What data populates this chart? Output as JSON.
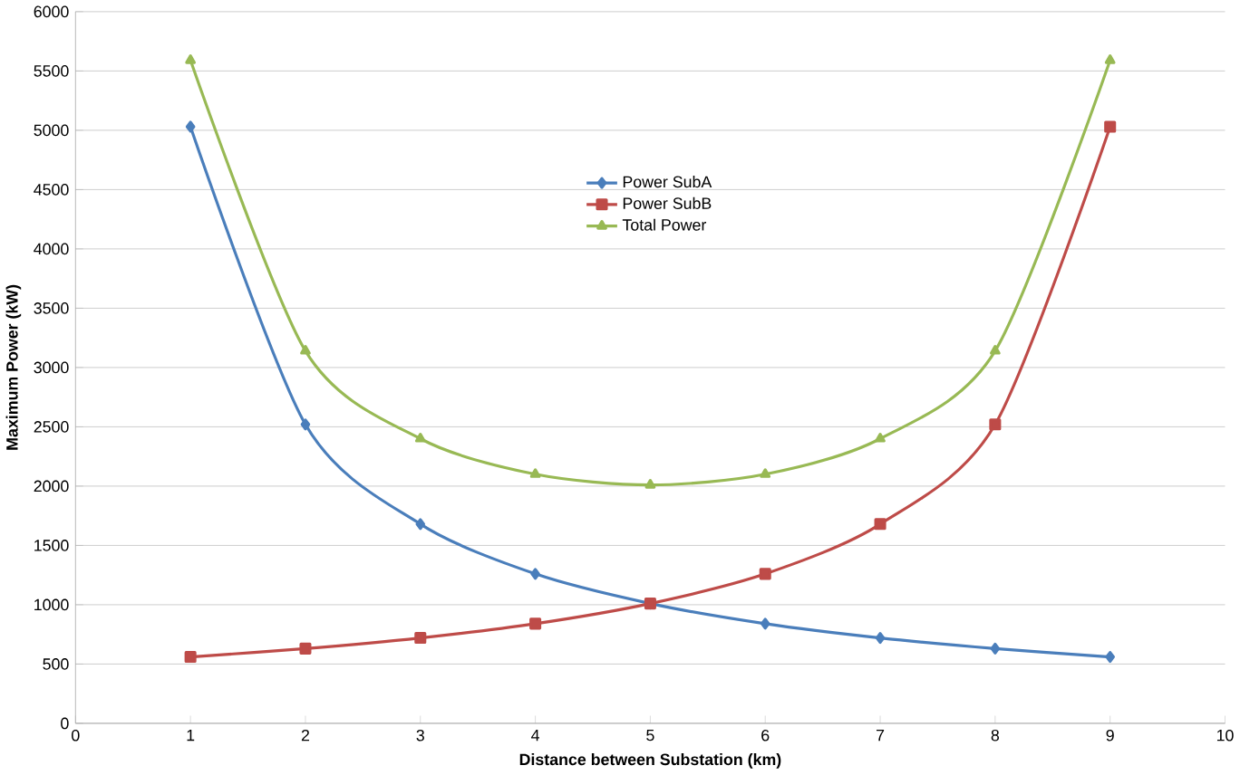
{
  "chart_data": {
    "type": "line",
    "xlabel": "Distance between Substation (km)",
    "ylabel": "Maximum Power (kW)",
    "x": [
      1,
      2,
      3,
      4,
      5,
      6,
      7,
      8,
      9
    ],
    "series": [
      {
        "name": "Power SubA",
        "color": "#4a7ebb",
        "marker": "diamond",
        "values": [
          5030,
          2520,
          1680,
          1260,
          1010,
          840,
          720,
          630,
          560
        ]
      },
      {
        "name": "Power SubB",
        "color": "#be4b48",
        "marker": "square",
        "values": [
          560,
          630,
          720,
          840,
          1010,
          1260,
          1680,
          2520,
          5030
        ]
      },
      {
        "name": "Total Power",
        "color": "#98b954",
        "marker": "triangle",
        "values": [
          5590,
          3140,
          2400,
          2100,
          2010,
          2100,
          2400,
          3140,
          5590
        ]
      }
    ],
    "xlim": [
      0,
      10
    ],
    "xticks": [
      0,
      1,
      2,
      3,
      4,
      5,
      6,
      7,
      8,
      9,
      10
    ],
    "ylim": [
      0,
      6000
    ],
    "yticks": [
      0,
      500,
      1000,
      1500,
      2000,
      2500,
      3000,
      3500,
      4000,
      4500,
      5000,
      5500,
      6000
    ],
    "grid": "y",
    "legend": "top",
    "line_style": "solid"
  }
}
